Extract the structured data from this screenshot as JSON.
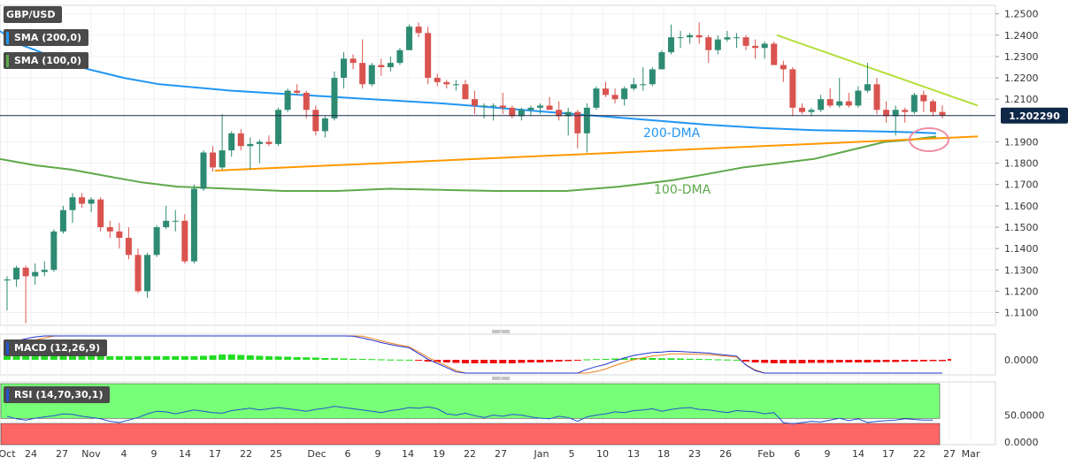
{
  "instrument": "GBP/USD",
  "indicators": {
    "sma200_label": "SMA (200,0)",
    "sma100_label": "SMA (100,0)",
    "macd_label": "MACD (12,26,9)",
    "rsi_label": "RSI (14,70,30,1)"
  },
  "colors": {
    "bull": "#2e8b73",
    "bear": "#d9534f",
    "sma200": "#2196f3",
    "sma100": "#5fa84a",
    "support": "#ff9800",
    "resistance": "#b2e03c",
    "macd_pos": "#22dd22",
    "macd_neg": "#ee1111",
    "rsi_line": "#2255cc",
    "rsi_overbought": "#77ff77",
    "rsi_oversold": "#ff6666",
    "circle": "#f08ca0"
  },
  "annotations": {
    "dma200": "200-DMA",
    "dma100": "100-DMA"
  },
  "chart_data": {
    "type": "candlestick",
    "price_axis": {
      "ticks": [
        "1.2500",
        "1.2400",
        "1.2300",
        "1.2200",
        "1.2100",
        "1.1900",
        "1.1800",
        "1.1700",
        "1.1600",
        "1.1500",
        "1.1400",
        "1.1300",
        "1.1200",
        "1.1100"
      ],
      "ylim": [
        1.104,
        1.254
      ],
      "current_price": "1.202290"
    },
    "x_axis": {
      "labels": [
        "Oct",
        "24",
        "27",
        "Nov",
        "4",
        "9",
        "14",
        "17",
        "22",
        "25",
        "Dec",
        "6",
        "9",
        "14",
        "19",
        "22",
        "27",
        "Jan",
        "5",
        "10",
        "13",
        "18",
        "23",
        "26",
        "Feb",
        "6",
        "9",
        "14",
        "17",
        "22",
        "27",
        "Mar"
      ]
    },
    "candles": [
      [
        1.125,
        1.127,
        1.111,
        1.1255
      ],
      [
        1.1255,
        1.132,
        1.122,
        1.131
      ],
      [
        1.131,
        1.132,
        1.105,
        1.127
      ],
      [
        1.127,
        1.133,
        1.123,
        1.129
      ],
      [
        1.129,
        1.134,
        1.127,
        1.13
      ],
      [
        1.13,
        1.149,
        1.129,
        1.148
      ],
      [
        1.148,
        1.16,
        1.147,
        1.158
      ],
      [
        1.158,
        1.166,
        1.152,
        1.164
      ],
      [
        1.164,
        1.166,
        1.159,
        1.161
      ],
      [
        1.161,
        1.164,
        1.157,
        1.163
      ],
      [
        1.163,
        1.164,
        1.148,
        1.15
      ],
      [
        1.15,
        1.153,
        1.145,
        1.148
      ],
      [
        1.148,
        1.152,
        1.14,
        1.145
      ],
      [
        1.145,
        1.15,
        1.135,
        1.137
      ],
      [
        1.137,
        1.14,
        1.119,
        1.12
      ],
      [
        1.12,
        1.138,
        1.117,
        1.137
      ],
      [
        1.137,
        1.151,
        1.136,
        1.15
      ],
      [
        1.15,
        1.16,
        1.149,
        1.153
      ],
      [
        1.153,
        1.158,
        1.148,
        1.153
      ],
      [
        1.153,
        1.156,
        1.133,
        1.134
      ],
      [
        1.134,
        1.17,
        1.133,
        1.168
      ],
      [
        1.168,
        1.186,
        1.167,
        1.185
      ],
      [
        1.185,
        1.188,
        1.176,
        1.178
      ],
      [
        1.178,
        1.203,
        1.177,
        1.186
      ],
      [
        1.186,
        1.195,
        1.183,
        1.194
      ],
      [
        1.194,
        1.196,
        1.186,
        1.188
      ],
      [
        1.188,
        1.192,
        1.177,
        1.189
      ],
      [
        1.189,
        1.191,
        1.18,
        1.19
      ],
      [
        1.19,
        1.193,
        1.188,
        1.189
      ],
      [
        1.189,
        1.206,
        1.188,
        1.205
      ],
      [
        1.205,
        1.215,
        1.204,
        1.214
      ],
      [
        1.214,
        1.217,
        1.212,
        1.213
      ],
      [
        1.213,
        1.214,
        1.201,
        1.205
      ],
      [
        1.205,
        1.207,
        1.193,
        1.195
      ],
      [
        1.195,
        1.202,
        1.192,
        1.201
      ],
      [
        1.201,
        1.223,
        1.2,
        1.22
      ],
      [
        1.22,
        1.232,
        1.215,
        1.229
      ],
      [
        1.229,
        1.231,
        1.224,
        1.227
      ],
      [
        1.227,
        1.238,
        1.215,
        1.217
      ],
      [
        1.217,
        1.227,
        1.216,
        1.226
      ],
      [
        1.226,
        1.229,
        1.221,
        1.225
      ],
      [
        1.225,
        1.23,
        1.223,
        1.227
      ],
      [
        1.227,
        1.234,
        1.226,
        1.233
      ],
      [
        1.233,
        1.245,
        1.233,
        1.244
      ],
      [
        1.244,
        1.246,
        1.239,
        1.241
      ],
      [
        1.241,
        1.244,
        1.217,
        1.22
      ],
      [
        1.22,
        1.222,
        1.216,
        1.218
      ],
      [
        1.218,
        1.219,
        1.215,
        1.217
      ],
      [
        1.217,
        1.219,
        1.214,
        1.217
      ],
      [
        1.217,
        1.219,
        1.21,
        1.21
      ],
      [
        1.21,
        1.214,
        1.203,
        1.207
      ],
      [
        1.207,
        1.208,
        1.201,
        1.207
      ],
      [
        1.207,
        1.208,
        1.2,
        1.207
      ],
      [
        1.207,
        1.213,
        1.203,
        1.206
      ],
      [
        1.206,
        1.207,
        1.201,
        1.202
      ],
      [
        1.202,
        1.206,
        1.2,
        1.205
      ],
      [
        1.205,
        1.207,
        1.202,
        1.206
      ],
      [
        1.206,
        1.208,
        1.203,
        1.207
      ],
      [
        1.207,
        1.211,
        1.205,
        1.205
      ],
      [
        1.205,
        1.209,
        1.2,
        1.202
      ],
      [
        1.202,
        1.206,
        1.193,
        1.204
      ],
      [
        1.204,
        1.205,
        1.187,
        1.194
      ],
      [
        1.194,
        1.208,
        1.185,
        1.206
      ],
      [
        1.206,
        1.216,
        1.205,
        1.215
      ],
      [
        1.215,
        1.218,
        1.211,
        1.212
      ],
      [
        1.212,
        1.215,
        1.208,
        1.21
      ],
      [
        1.21,
        1.216,
        1.207,
        1.215
      ],
      [
        1.215,
        1.22,
        1.214,
        1.217
      ],
      [
        1.217,
        1.225,
        1.214,
        1.217
      ],
      [
        1.217,
        1.225,
        1.216,
        1.224
      ],
      [
        1.224,
        1.233,
        1.224,
        1.232
      ],
      [
        1.232,
        1.245,
        1.231,
        1.239
      ],
      [
        1.239,
        1.242,
        1.234,
        1.239
      ],
      [
        1.239,
        1.241,
        1.236,
        1.24
      ],
      [
        1.24,
        1.246,
        1.236,
        1.239
      ],
      [
        1.239,
        1.24,
        1.227,
        1.233
      ],
      [
        1.233,
        1.24,
        1.231,
        1.238
      ],
      [
        1.238,
        1.242,
        1.237,
        1.239
      ],
      [
        1.239,
        1.241,
        1.234,
        1.239
      ],
      [
        1.239,
        1.24,
        1.233,
        1.235
      ],
      [
        1.235,
        1.238,
        1.229,
        1.234
      ],
      [
        1.234,
        1.237,
        1.229,
        1.236
      ],
      [
        1.236,
        1.237,
        1.226,
        1.226
      ],
      [
        1.226,
        1.228,
        1.218,
        1.224
      ],
      [
        1.224,
        1.225,
        1.202,
        1.206
      ],
      [
        1.206,
        1.208,
        1.203,
        1.204
      ],
      [
        1.204,
        1.206,
        1.202,
        1.205
      ],
      [
        1.205,
        1.212,
        1.204,
        1.21
      ],
      [
        1.21,
        1.215,
        1.206,
        1.207
      ],
      [
        1.207,
        1.22,
        1.206,
        1.209
      ],
      [
        1.209,
        1.213,
        1.206,
        1.207
      ],
      [
        1.207,
        1.216,
        1.206,
        1.214
      ],
      [
        1.214,
        1.227,
        1.213,
        1.217
      ],
      [
        1.217,
        1.22,
        1.203,
        1.205
      ],
      [
        1.205,
        1.209,
        1.199,
        1.202
      ],
      [
        1.202,
        1.207,
        1.193,
        1.205
      ],
      [
        1.205,
        1.206,
        1.199,
        1.204
      ],
      [
        1.204,
        1.213,
        1.203,
        1.212
      ],
      [
        1.212,
        1.214,
        1.204,
        1.209
      ],
      [
        1.209,
        1.21,
        1.202,
        1.204
      ],
      [
        1.204,
        1.207,
        1.201,
        1.2023
      ]
    ],
    "sma200": [
      [
        0,
        1.242
      ],
      [
        20,
        1.236
      ],
      [
        40,
        1.233
      ],
      [
        70,
        1.228
      ],
      [
        100,
        1.224
      ],
      [
        140,
        1.22
      ],
      [
        180,
        1.217
      ],
      [
        260,
        1.214
      ],
      [
        340,
        1.212
      ],
      [
        420,
        1.21
      ],
      [
        500,
        1.208
      ],
      [
        560,
        1.206
      ],
      [
        620,
        1.204
      ],
      [
        680,
        1.202
      ],
      [
        740,
        1.2
      ],
      [
        800,
        1.198
      ],
      [
        860,
        1.1965
      ],
      [
        920,
        1.1955
      ],
      [
        980,
        1.195
      ],
      [
        1030,
        1.1945
      ],
      [
        1058,
        1.194
      ]
    ],
    "sma100": [
      [
        0,
        1.182
      ],
      [
        40,
        1.179
      ],
      [
        80,
        1.177
      ],
      [
        120,
        1.174
      ],
      [
        160,
        1.171
      ],
      [
        200,
        1.169
      ],
      [
        260,
        1.168
      ],
      [
        320,
        1.167
      ],
      [
        380,
        1.167
      ],
      [
        440,
        1.168
      ],
      [
        500,
        1.1675
      ],
      [
        560,
        1.167
      ],
      [
        640,
        1.167
      ],
      [
        700,
        1.169
      ],
      [
        760,
        1.172
      ],
      [
        800,
        1.175
      ],
      [
        840,
        1.178
      ],
      [
        880,
        1.18
      ],
      [
        920,
        1.182
      ],
      [
        960,
        1.186
      ],
      [
        1000,
        1.19
      ],
      [
        1030,
        1.191
      ],
      [
        1058,
        1.1925
      ]
    ],
    "support_line": {
      "from": [
        243,
        1.1765
      ],
      "to": [
        1105,
        1.1925
      ]
    },
    "resistance_line": {
      "from": [
        878,
        1.24
      ],
      "to": [
        1105,
        1.207
      ]
    },
    "macd": {
      "ticks": [
        "0.0000"
      ],
      "histogram_values": [
        0.004,
        0.004,
        0.004,
        0.004,
        0.004,
        0.004,
        0.004,
        0.004,
        0.004,
        0.004,
        0.004,
        0.004,
        0.004,
        0.004,
        0.004,
        0.004,
        0.004,
        0.004,
        0.004,
        0.004,
        0.004,
        0.0045,
        0.005,
        0.006,
        0.006,
        0.0055,
        0.005,
        0.0045,
        0.004,
        0.0038,
        0.0035,
        0.003,
        0.0028,
        0.0025,
        0.002,
        0.0018,
        0.0015,
        0.0012,
        0.001,
        0.0008,
        0.0005,
        0.0003,
        0.0002,
        0.0001,
        -0.001,
        -0.002,
        -0.0025,
        -0.003,
        -0.0035,
        -0.004,
        -0.004,
        -0.004,
        -0.004,
        -0.004,
        -0.004,
        -0.0035,
        -0.003,
        -0.003,
        -0.0025,
        -0.002,
        -0.0015,
        -0.001,
        0.0005,
        0.0008,
        0.001,
        0.0015,
        0.0018,
        0.002,
        0.002,
        0.002,
        0.0018,
        0.0018,
        0.0015,
        0.0012,
        0.001,
        0.0008,
        0.0005,
        0.0003,
        0.0001,
        -0.002,
        -0.003,
        -0.0035,
        -0.004,
        -0.004,
        -0.004,
        -0.004,
        -0.0035,
        -0.0035,
        -0.0035,
        -0.003,
        -0.003,
        -0.003,
        -0.003,
        -0.0028,
        -0.0025,
        -0.0025,
        -0.002,
        -0.002,
        -0.0018,
        -0.0015,
        -0.0015
      ]
    },
    "rsi": {
      "ticks": [
        "50.0000",
        "0.0000"
      ],
      "ylim": [
        0,
        100
      ],
      "overbought": 70,
      "oversold": 30,
      "values": [
        48,
        44,
        42,
        45,
        47,
        49,
        52,
        51,
        48,
        46,
        44,
        40,
        38,
        42,
        46,
        52,
        56,
        55,
        52,
        55,
        58,
        56,
        54,
        53,
        57,
        59,
        61,
        58,
        60,
        62,
        60,
        58,
        56,
        59,
        61,
        64,
        62,
        60,
        58,
        56,
        54,
        57,
        59,
        62,
        61,
        63,
        60,
        52,
        50,
        53,
        49,
        46,
        50,
        48,
        51,
        50,
        47,
        45,
        44,
        48,
        46,
        40,
        47,
        50,
        52,
        55,
        54,
        57,
        58,
        60,
        56,
        59,
        61,
        62,
        59,
        58,
        56,
        54,
        57,
        56,
        55,
        52,
        54,
        38,
        36,
        38,
        40,
        39,
        42,
        45,
        41,
        44,
        38,
        40,
        41,
        42,
        44,
        43,
        42,
        42
      ]
    }
  }
}
